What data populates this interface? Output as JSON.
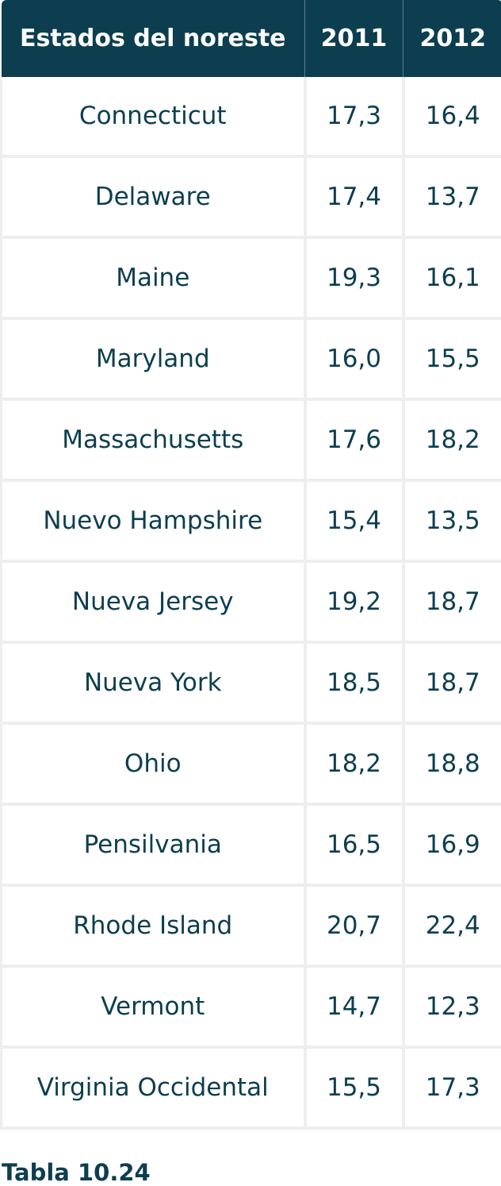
{
  "table": {
    "headers": [
      "Estados del noreste",
      "2011",
      "2012"
    ],
    "rows": [
      [
        "Connecticut",
        "17,3",
        "16,4"
      ],
      [
        "Delaware",
        "17,4",
        "13,7"
      ],
      [
        "Maine",
        "19,3",
        "16,1"
      ],
      [
        "Maryland",
        "16,0",
        "15,5"
      ],
      [
        "Massachusetts",
        "17,6",
        "18,2"
      ],
      [
        "Nuevo Hampshire",
        "15,4",
        "13,5"
      ],
      [
        "Nueva Jersey",
        "19,2",
        "18,7"
      ],
      [
        "Nueva York",
        "18,5",
        "18,7"
      ],
      [
        "Ohio",
        "18,2",
        "18,8"
      ],
      [
        "Pensilvania",
        "16,5",
        "16,9"
      ],
      [
        "Rhode Island",
        "20,7",
        "22,4"
      ],
      [
        "Vermont",
        "14,7",
        "12,3"
      ],
      [
        "Virginia Occidental",
        "15,5",
        "17,3"
      ]
    ]
  },
  "caption": "Tabla 10.24",
  "colors": {
    "header_bg": "#0c3e4f",
    "header_text": "#ffffff",
    "body_text": "#0c3e4f",
    "grid": "#eeeeee"
  }
}
